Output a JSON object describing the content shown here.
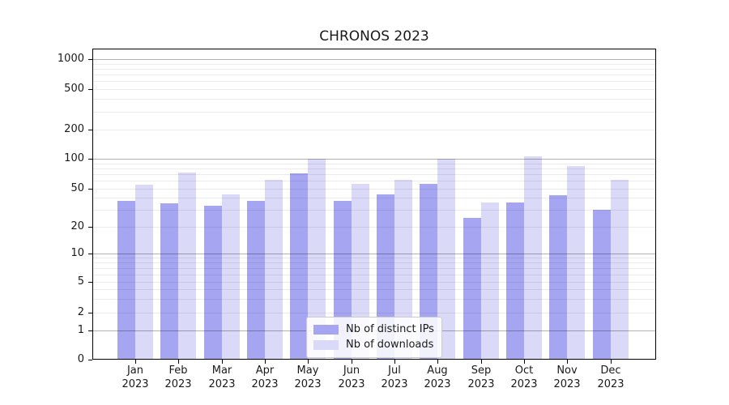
{
  "chart_data": {
    "type": "bar",
    "title": "CHRONOS 2023",
    "categories": [
      "Jan 2023",
      "Feb 2023",
      "Mar 2023",
      "Apr 2023",
      "May 2023",
      "Jun 2023",
      "Jul 2023",
      "Aug 2023",
      "Sep 2023",
      "Oct 2023",
      "Nov 2023",
      "Dec 2023"
    ],
    "series": [
      {
        "name": "Nb of distinct IPs",
        "color": "#a5a5f1",
        "values": [
          37,
          35,
          33,
          37,
          72,
          37,
          44,
          56,
          25,
          36,
          43,
          30
        ]
      },
      {
        "name": "Nb of downloads",
        "color": "#dadaf8",
        "values": [
          55,
          73,
          44,
          62,
          100,
          56,
          62,
          100,
          36,
          105,
          85,
          62
        ]
      }
    ],
    "xlabel": "",
    "ylabel": "",
    "yscale": "symlog",
    "ylim": [
      0,
      1100
    ],
    "y_ticks": [
      0,
      1,
      2,
      5,
      10,
      20,
      50,
      100,
      200,
      500,
      1000
    ],
    "major_grid_values": [
      1,
      10,
      100,
      1000
    ],
    "minor_grid_values": [
      2,
      3,
      4,
      5,
      6,
      7,
      8,
      9,
      20,
      30,
      40,
      50,
      60,
      70,
      80,
      90,
      200,
      300,
      400,
      500,
      600,
      700,
      800,
      900
    ],
    "grid": true,
    "legend_position": "lower center",
    "axis_color": "#000000"
  }
}
